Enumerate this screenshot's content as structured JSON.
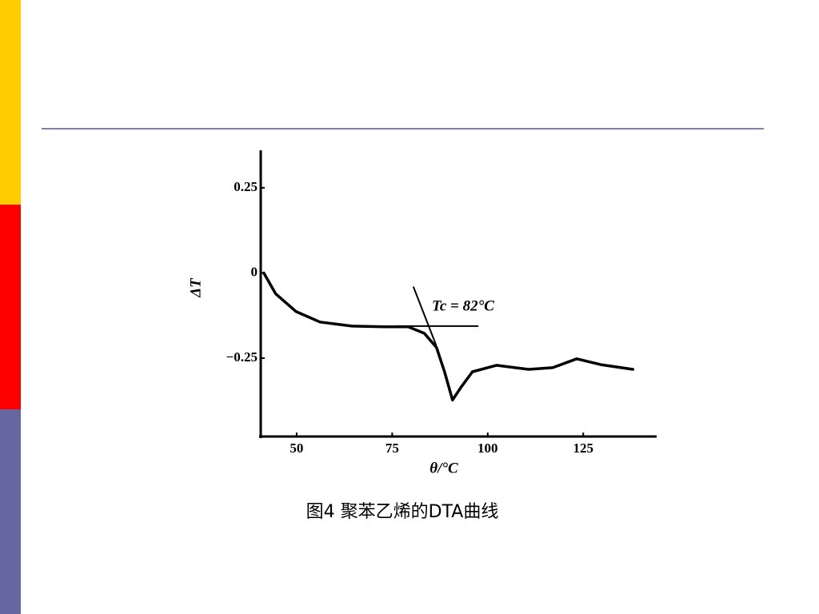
{
  "chart_data": {
    "type": "line",
    "xlabel": "θ/°C",
    "ylabel": "ΔT",
    "annotation": "Tc = 82°C",
    "xlim": [
      40.6,
      144
    ],
    "ylim": [
      -0.48,
      0.36
    ],
    "xticks": [
      50,
      75,
      100,
      125
    ],
    "yticks": [
      0.25,
      0,
      {
        "value": -0.25,
        "label": "−0.25"
      }
    ],
    "series": [
      {
        "color": "#000000",
        "x": [
          41.4,
          44.5,
          49.8,
          56.1,
          64.5,
          72.9,
          79.2,
          83.4,
          86.6,
          88.7,
          90.8,
          92.9,
          96.0,
          102.3,
          110.7,
          117.0,
          123.3,
          129.6,
          138.0
        ],
        "values": [
          0,
          -0.061,
          -0.113,
          -0.144,
          -0.156,
          -0.158,
          -0.158,
          -0.177,
          -0.219,
          -0.29,
          -0.373,
          -0.337,
          -0.29,
          -0.271,
          -0.283,
          -0.278,
          -0.252,
          -0.269,
          -0.283
        ]
      },
      {
        "color": "#000000",
        "x": [
          76.0,
          97.4
        ],
        "values": [
          -0.156,
          -0.156
        ]
      },
      {
        "color": "#000000",
        "x": [
          80.6,
          86.5
        ],
        "values": [
          -0.042,
          -0.212
        ]
      }
    ]
  },
  "caption": "图4   聚苯乙烯的DTA曲线"
}
